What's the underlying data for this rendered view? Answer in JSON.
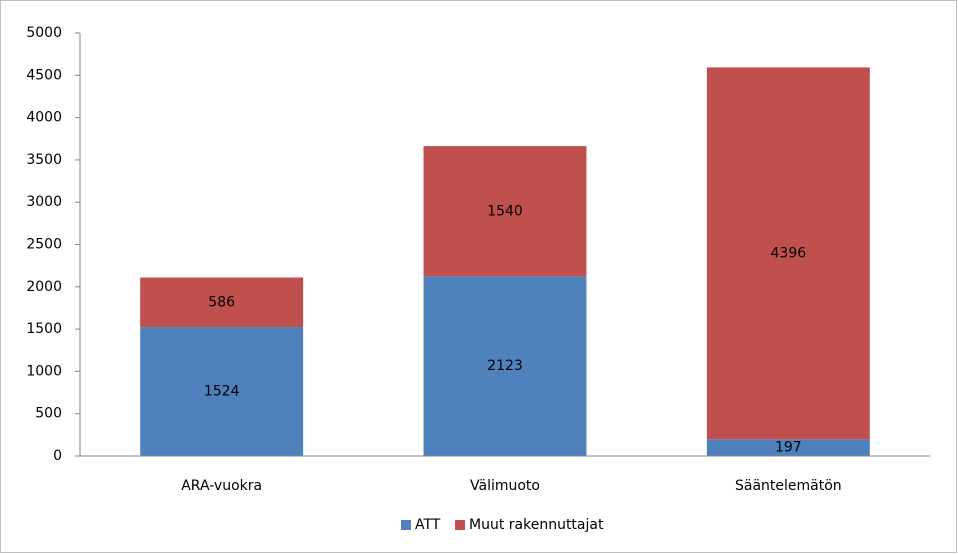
{
  "chart_data": {
    "type": "stacked_bar",
    "categories": [
      "ARA-vuokra",
      "Välimuoto",
      "Sääntelemätön"
    ],
    "series": [
      {
        "name": "ATT",
        "color": "#4f81bd",
        "values": [
          1524,
          2123,
          197
        ]
      },
      {
        "name": "Muut rakennuttajat",
        "color": "#c0504d",
        "values": [
          586,
          1540,
          4396
        ]
      }
    ],
    "ylim": [
      0,
      5000
    ],
    "yticks": [
      0,
      500,
      1000,
      1500,
      2000,
      2500,
      3000,
      3500,
      4000,
      4500,
      5000
    ],
    "grid": false,
    "legend": "bottom"
  }
}
